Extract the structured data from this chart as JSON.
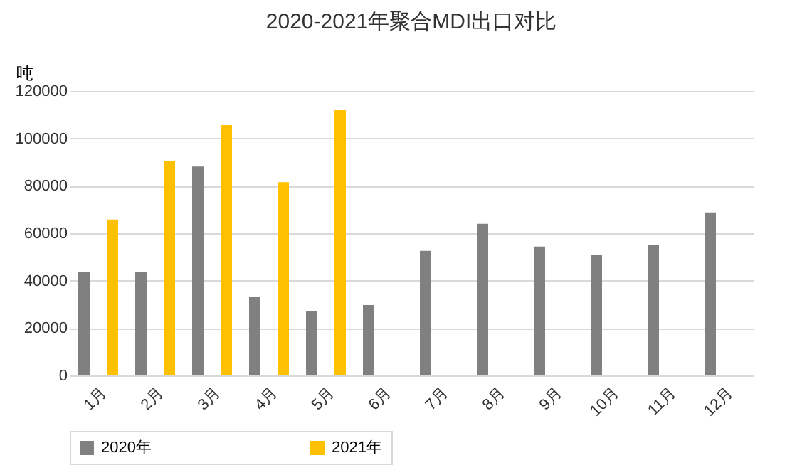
{
  "chart_data": {
    "type": "bar",
    "title": "2020-2021年聚合MDI出口对比",
    "ylabel": "吨",
    "categories": [
      "1月",
      "2月",
      "3月",
      "4月",
      "5月",
      "6月",
      "7月",
      "8月",
      "9月",
      "10月",
      "11月",
      "12月"
    ],
    "series": [
      {
        "name": "2020年",
        "color": "#808080",
        "values": [
          43500,
          43500,
          88100,
          33300,
          27300,
          29700,
          52600,
          64000,
          54400,
          50800,
          55000,
          68800
        ]
      },
      {
        "name": "2021年",
        "color": "#ffc000",
        "values": [
          65800,
          90500,
          105600,
          81500,
          112200,
          null,
          null,
          null,
          null,
          null,
          null,
          null
        ]
      }
    ],
    "ylim": [
      0,
      120000
    ],
    "yticks": [
      0,
      20000,
      40000,
      60000,
      80000,
      100000,
      120000
    ],
    "grid": "y",
    "legend": "bottom"
  }
}
